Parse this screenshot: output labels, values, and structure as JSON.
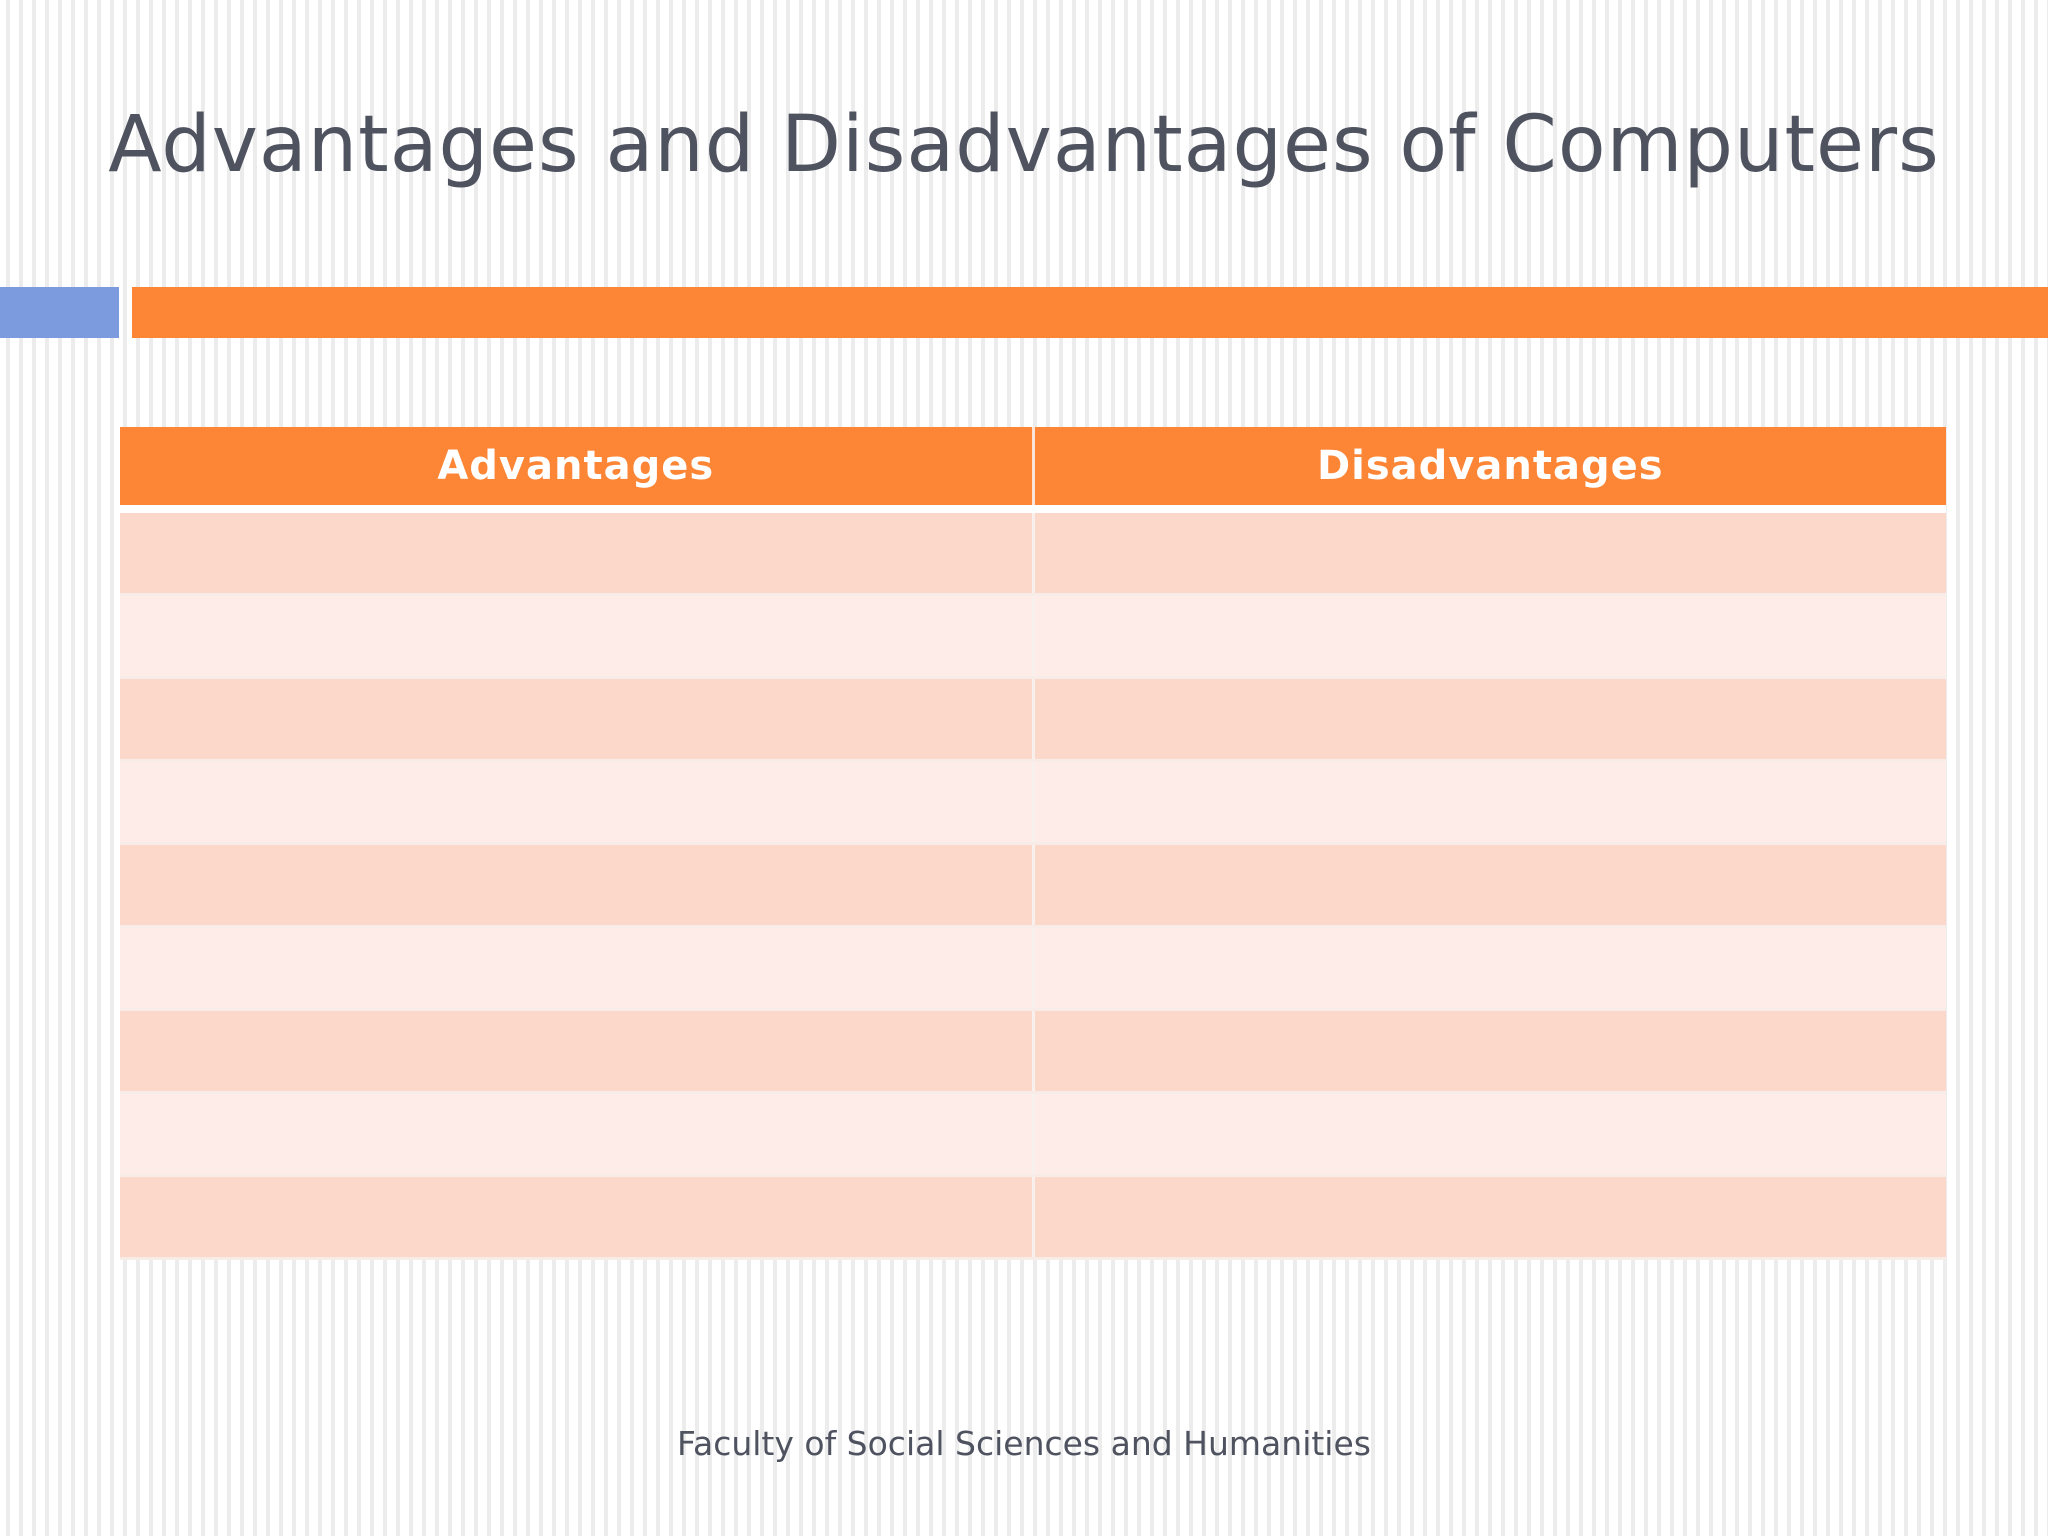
{
  "slide": {
    "title": "Advantages and Disadvantages of Computers",
    "footer": "Faculty of Social Sciences and Humanities"
  },
  "colors": {
    "accent_orange": "#fd8536",
    "accent_blue": "#7b9bde",
    "row_dark": "#fcd8cb",
    "row_light": "#fdece8",
    "title_text": "#4f5360"
  },
  "table": {
    "headers": [
      "Advantages",
      "Disadvantages"
    ],
    "rows": [
      [
        "",
        ""
      ],
      [
        "",
        ""
      ],
      [
        "",
        ""
      ],
      [
        "",
        ""
      ],
      [
        "",
        ""
      ],
      [
        "",
        ""
      ],
      [
        "",
        ""
      ],
      [
        "",
        ""
      ],
      [
        "",
        ""
      ]
    ]
  }
}
